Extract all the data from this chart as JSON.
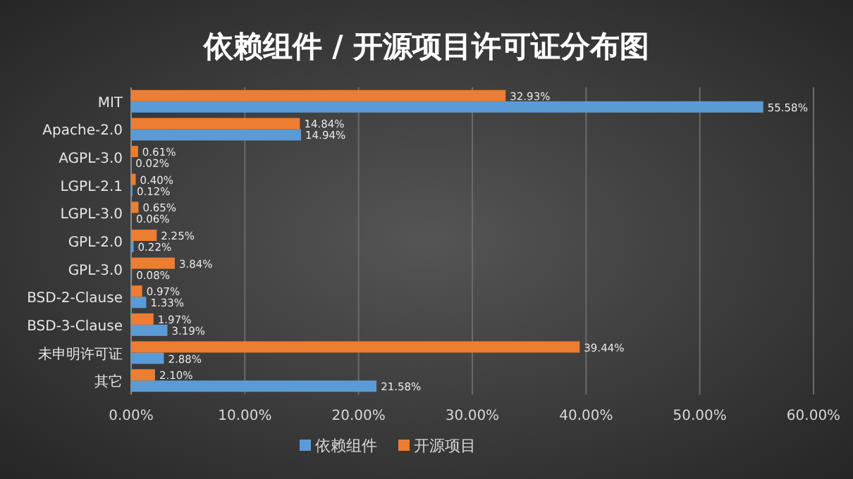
{
  "chart_data": {
    "type": "bar",
    "orientation": "horizontal",
    "title": "依赖组件 / 开源项目许可证分布图",
    "categories": [
      "MIT",
      "Apache-2.0",
      "AGPL-3.0",
      "LGPL-2.1",
      "LGPL-3.0",
      "GPL-2.0",
      "GPL-3.0",
      "BSD-2-Clause",
      "BSD-3-Clause",
      "未申明许可证",
      "其它"
    ],
    "series": [
      {
        "name": "依赖组件",
        "color": "#5b9bd5",
        "values": [
          55.58,
          14.94,
          0.02,
          0.12,
          0.06,
          0.22,
          0.08,
          1.33,
          3.19,
          2.88,
          21.58
        ],
        "value_labels": [
          "55.58%",
          "14.94%",
          "0.02%",
          "0.12%",
          "0.06%",
          "0.22%",
          "0.08%",
          "1.33%",
          "3.19%",
          "2.88%",
          "21.58%"
        ]
      },
      {
        "name": "开源项目",
        "color": "#ed7d31",
        "values": [
          32.93,
          14.84,
          0.61,
          0.4,
          0.65,
          2.25,
          3.84,
          0.97,
          1.97,
          39.44,
          2.1
        ],
        "value_labels": [
          "32.93%",
          "14.84%",
          "0.61%",
          "0.40%",
          "0.65%",
          "2.25%",
          "3.84%",
          "0.97%",
          "1.97%",
          "39.44%",
          "2.10%"
        ]
      }
    ],
    "xlim": [
      0,
      60
    ],
    "xticks": [
      {
        "value": 0,
        "label": "0.00%"
      },
      {
        "value": 10,
        "label": "10.00%"
      },
      {
        "value": 20,
        "label": "20.00%"
      },
      {
        "value": 30,
        "label": "30.00%"
      },
      {
        "value": 40,
        "label": "40.00%"
      },
      {
        "value": 50,
        "label": "50.00%"
      },
      {
        "value": 60,
        "label": "60.00%"
      }
    ],
    "grid": "x",
    "legend": "bottom"
  }
}
